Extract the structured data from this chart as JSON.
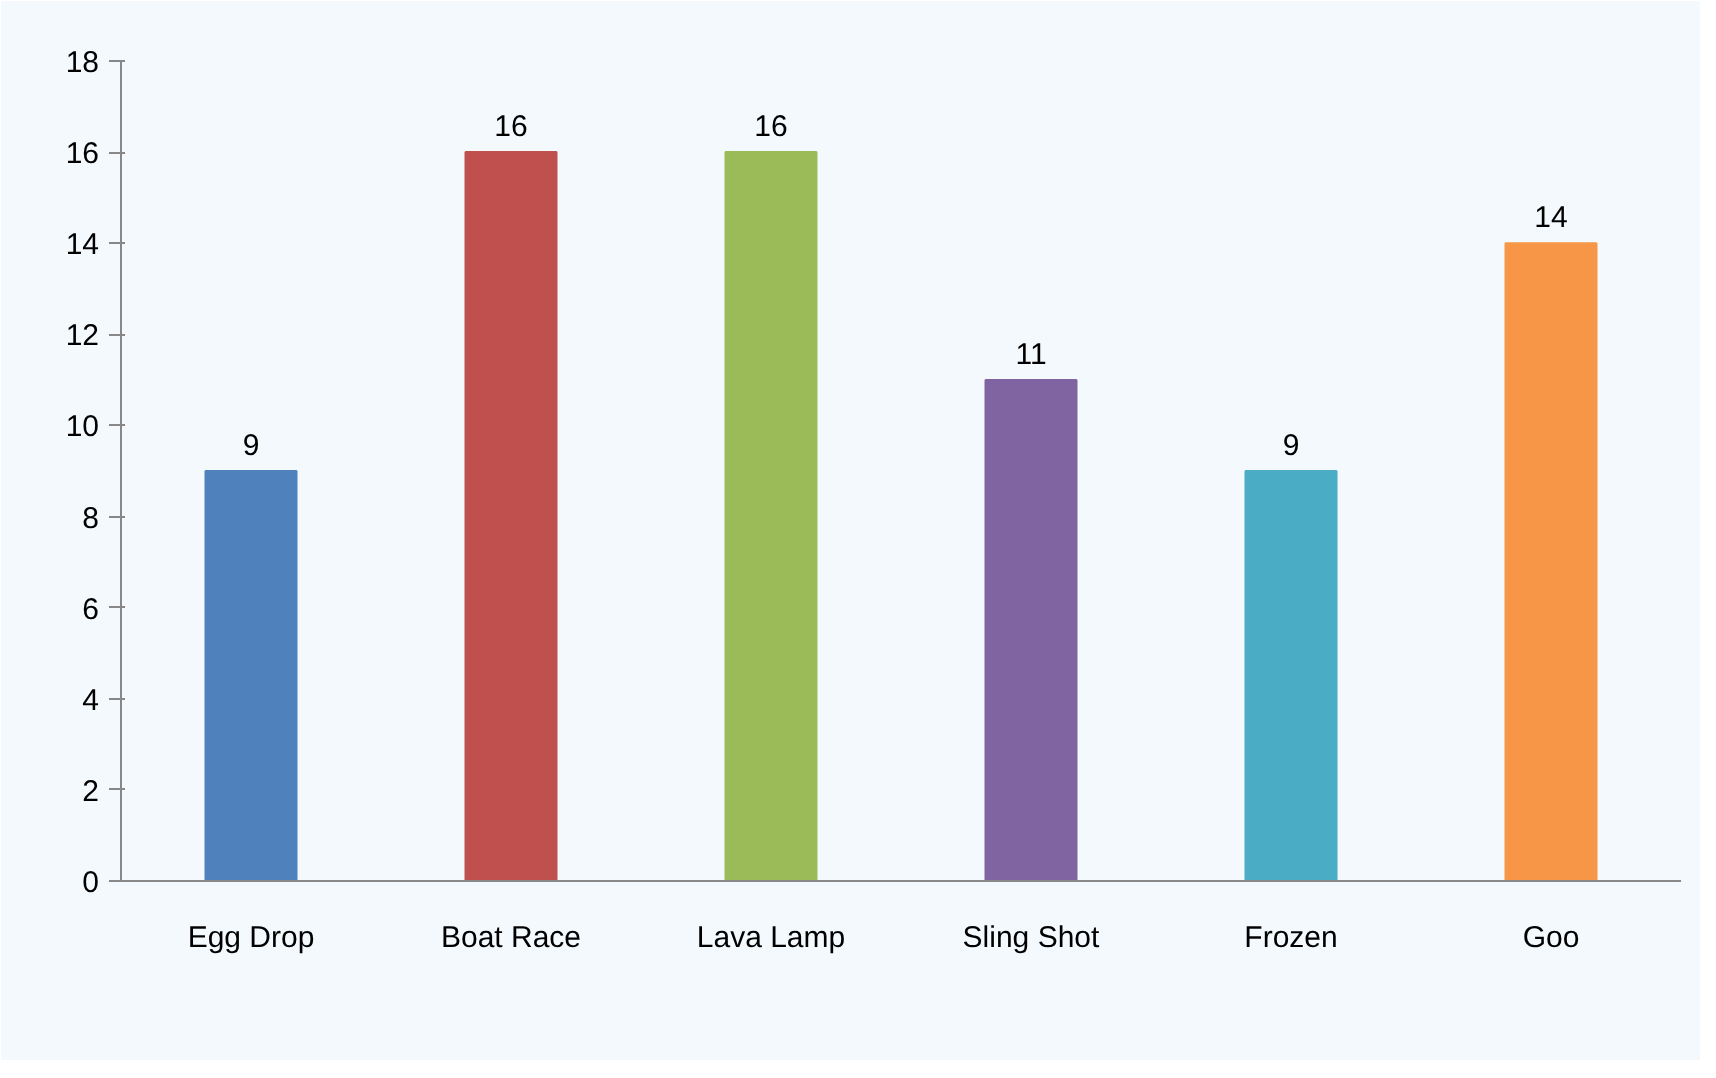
{
  "chart_data": {
    "type": "bar",
    "categories": [
      "Egg Drop",
      "Boat Race",
      "Lava Lamp",
      "Sling Shot",
      "Frozen",
      "Goo"
    ],
    "values": [
      9,
      16,
      16,
      11,
      9,
      14
    ],
    "colors": [
      "#4f81bd",
      "#c0504d",
      "#9bbb59",
      "#8064a2",
      "#4bacc6",
      "#f79646"
    ],
    "ylim": [
      0,
      18
    ],
    "yticks": [
      0,
      2,
      4,
      6,
      8,
      10,
      12,
      14,
      16,
      18
    ],
    "grid": false,
    "data_labels": true
  }
}
